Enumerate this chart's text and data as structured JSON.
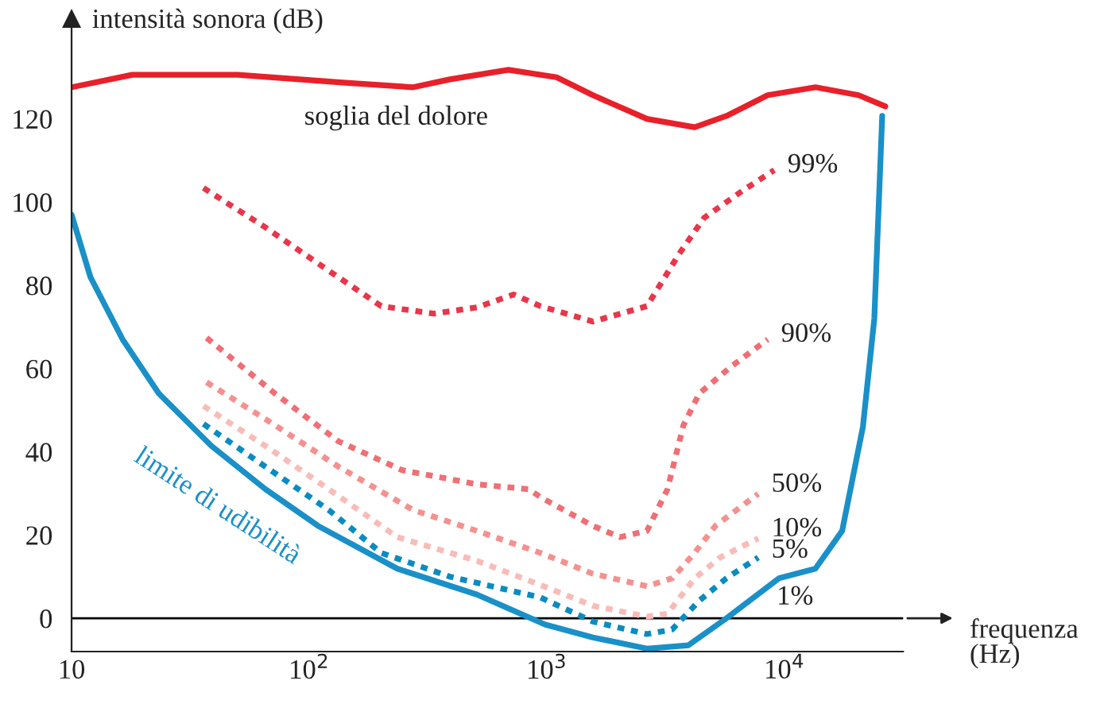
{
  "chart_data": {
    "type": "line",
    "xlabel": "frequenza\n(Hz)",
    "ylabel": "intensità sonora (dB)",
    "log": "x",
    "xlim": [
      10,
      31600
    ],
    "ylim": [
      -8,
      144
    ],
    "xticks": [
      10,
      {
        "value": 100,
        "label": "10$^{2}$"
      },
      {
        "value": 1000,
        "label": "10$^{3}$"
      },
      {
        "value": 10000,
        "label": "10$^{4}$"
      }
    ],
    "yticks": [
      0,
      20,
      40,
      60,
      80,
      100,
      120
    ],
    "grid": false,
    "legend": false,
    "marker": "none",
    "series": [
      {
        "name": "soglia del dolore",
        "color": "#e8202a",
        "line_style": "solid",
        "x": [
          10,
          18,
          50,
          142,
          274,
          391,
          690,
          1100,
          1563,
          2640,
          4190,
          5700,
          8510,
          13500,
          20500,
          26600
        ],
        "values": [
          127.6,
          130.6,
          130.6,
          128.7,
          127.6,
          129.5,
          131.8,
          130,
          125.7,
          120,
          118,
          120.7,
          125.7,
          127.6,
          125.7,
          123
        ]
      },
      {
        "name": "99%",
        "color": "#e8364a",
        "line_style": "dotted",
        "x": [
          35.9,
          65.5,
          121,
          201,
          335,
          508,
          725,
          940,
          1563,
          2640,
          3590,
          4590,
          6650,
          9060
        ],
        "values": [
          103.4,
          93.9,
          83.5,
          75,
          73.2,
          74.7,
          77.8,
          75,
          71.3,
          75,
          87.4,
          96.2,
          102.7,
          107.7
        ]
      },
      {
        "name": "90%",
        "color": "#ef6f75",
        "line_style": "dotted",
        "x": [
          37,
          71.8,
          133,
          246,
          508,
          843,
          940,
          1563,
          2030,
          2640,
          3220,
          3760,
          4380,
          5970,
          8510
        ],
        "values": [
          67.4,
          54,
          42.5,
          35.6,
          32.2,
          31,
          29.1,
          22.2,
          19.5,
          21,
          31,
          46.4,
          54,
          60.5,
          67
        ]
      },
      {
        "name": "50%",
        "color": "#f4918f",
        "line_style": "dotted",
        "x": [
          37,
          71.8,
          133,
          274,
          508,
          940,
          1563,
          2640,
          3370,
          4190,
          5120,
          7760
        ],
        "values": [
          56.7,
          46.4,
          36.4,
          26,
          21,
          15.7,
          10.7,
          7.7,
          9.6,
          15.7,
          22.2,
          29.9
        ]
      },
      {
        "name": "10%",
        "color": "#f8bcb8",
        "line_style": "dotted",
        "x": [
          35.9,
          65.5,
          121,
          235,
          508,
          940,
          1563,
          2640,
          3220,
          4190,
          5360,
          7760
        ],
        "values": [
          51,
          41.4,
          31,
          19.5,
          13.8,
          8,
          3,
          0.4,
          1.1,
          9.6,
          14.6,
          19.2
        ]
      },
      {
        "name": "5%",
        "color": "#0b8cc0",
        "line_style": "dotted",
        "x": [
          35.9,
          65.5,
          121,
          201,
          391,
          940,
          1563,
          2640,
          3370,
          4380,
          5700,
          7760
        ],
        "values": [
          46.7,
          36.4,
          26,
          15.7,
          10,
          5,
          -0.8,
          -3.8,
          -2.7,
          4.2,
          9.6,
          14.6
        ]
      },
      {
        "name": "limite di udibilità",
        "color": "#1a90c8",
        "line_style": "solid",
        "x": [
          10,
          12,
          16.4,
          23.3,
          38.8,
          65.5,
          109,
          235,
          508,
          984,
          1563,
          2640,
          3940,
          5700,
          9480,
          13500,
          17500,
          21400,
          23900,
          25800
        ],
        "values": [
          97,
          82,
          67,
          54,
          41.4,
          31,
          22.2,
          11.9,
          5.7,
          -1.5,
          -4.6,
          -7.3,
          -6.5,
          0,
          9.6,
          11.9,
          21,
          46,
          72,
          120.7
        ]
      }
    ],
    "ref_lines": [
      {
        "axis": "y",
        "value": 0,
        "color": "#000000"
      }
    ],
    "annotations": [
      "1%"
    ]
  }
}
